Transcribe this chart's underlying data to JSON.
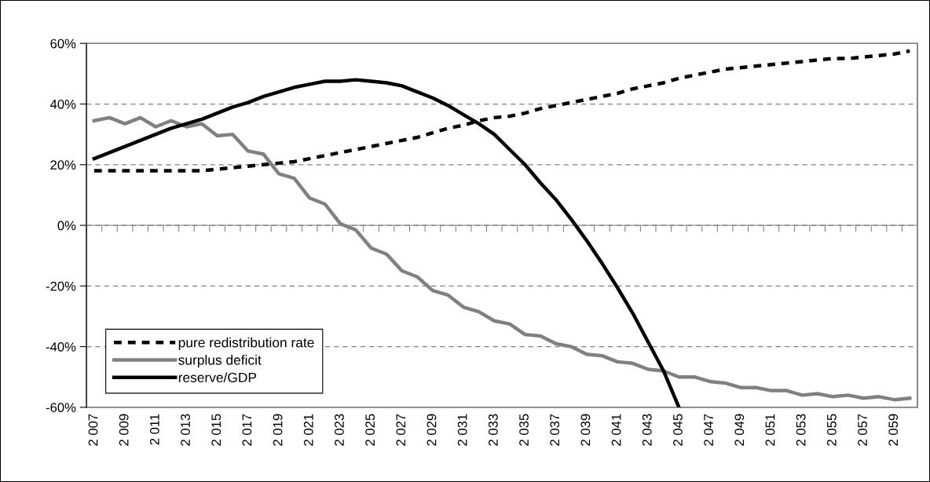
{
  "chart_data": {
    "type": "line",
    "categories": [
      "2 007",
      null,
      "2 009",
      null,
      "2 011",
      null,
      "2 013",
      null,
      "2 015",
      null,
      "2 017",
      null,
      "2 019",
      null,
      "2 021",
      null,
      "2 023",
      null,
      "2 025",
      null,
      "2 027",
      null,
      "2 029",
      null,
      "2 031",
      null,
      "2 033",
      null,
      "2 035",
      null,
      "2 037",
      null,
      "2 039",
      null,
      "2 041",
      null,
      "2 043",
      null,
      "2 045",
      null,
      "2 047",
      null,
      "2 049",
      null,
      "2 051",
      null,
      "2 053",
      null,
      "2 055",
      null,
      "2 057",
      null,
      "2 059",
      null
    ],
    "series": [
      {
        "name": "pure redistribution rate",
        "color": "#000000",
        "line_style": "dashed",
        "values": [
          18,
          18,
          18,
          18,
          18,
          18,
          18,
          18,
          18.5,
          19,
          19.5,
          20,
          20.5,
          21,
          22,
          23,
          24,
          25,
          26,
          27,
          28,
          29,
          30.5,
          32,
          33,
          34.5,
          35.5,
          36,
          37,
          38.5,
          39.5,
          40.5,
          41.5,
          42.5,
          43.5,
          45,
          46,
          47,
          48.5,
          49.5,
          50.5,
          51.5,
          52,
          52.5,
          53,
          53.5,
          54,
          54.5,
          55,
          55,
          55.5,
          56,
          56.5,
          57.5
        ]
      },
      {
        "name": "surplus deficit",
        "color": "#808080",
        "line_style": "solid",
        "values": [
          34.5,
          35.5,
          33.5,
          35.5,
          32.5,
          34.5,
          32.5,
          33.5,
          29.5,
          30,
          24.5,
          23.5,
          17,
          15.5,
          9,
          7,
          0.5,
          -1.5,
          -7.5,
          -9.5,
          -15,
          -17,
          -21.5,
          -23,
          -27,
          -28.5,
          -31.5,
          -32.5,
          -36,
          -36.5,
          -39,
          -40,
          -42.5,
          -43,
          -45,
          -45.5,
          -47.5,
          -48,
          -50,
          -50,
          -51.5,
          -52,
          -53.5,
          -53.5,
          -54.5,
          -54.5,
          -56,
          -55.5,
          -56.5,
          -56,
          -57,
          -56.5,
          -57.5,
          -57
        ]
      },
      {
        "name": "reserve/GDP",
        "color": "#000000",
        "line_style": "solid",
        "values": [
          22,
          24,
          26,
          28,
          30,
          32,
          33.5,
          35,
          37,
          39,
          40.5,
          42.5,
          44,
          45.5,
          46.5,
          47.5,
          47.5,
          48,
          47.5,
          47,
          46,
          44,
          42,
          39.5,
          36.5,
          33.5,
          30,
          25,
          20,
          14,
          8.5,
          2,
          -5,
          -12.5,
          -20.5,
          -29,
          -38.5,
          -48,
          -60,
          null,
          null,
          null,
          null,
          null,
          null,
          null,
          null,
          null,
          null,
          null,
          null,
          null,
          null,
          null
        ]
      }
    ],
    "ylim": [
      -60,
      60
    ],
    "yticks": [
      {
        "value": -60,
        "label": "-60%"
      },
      {
        "value": -40,
        "label": "-40%"
      },
      {
        "value": -20,
        "label": "-20%"
      },
      {
        "value": 0,
        "label": "0%"
      },
      {
        "value": 20,
        "label": "20%"
      },
      {
        "value": 40,
        "label": "40%"
      },
      {
        "value": 60,
        "label": "60%"
      }
    ],
    "grid": "y",
    "legend": "bottom left",
    "marker": "none"
  }
}
